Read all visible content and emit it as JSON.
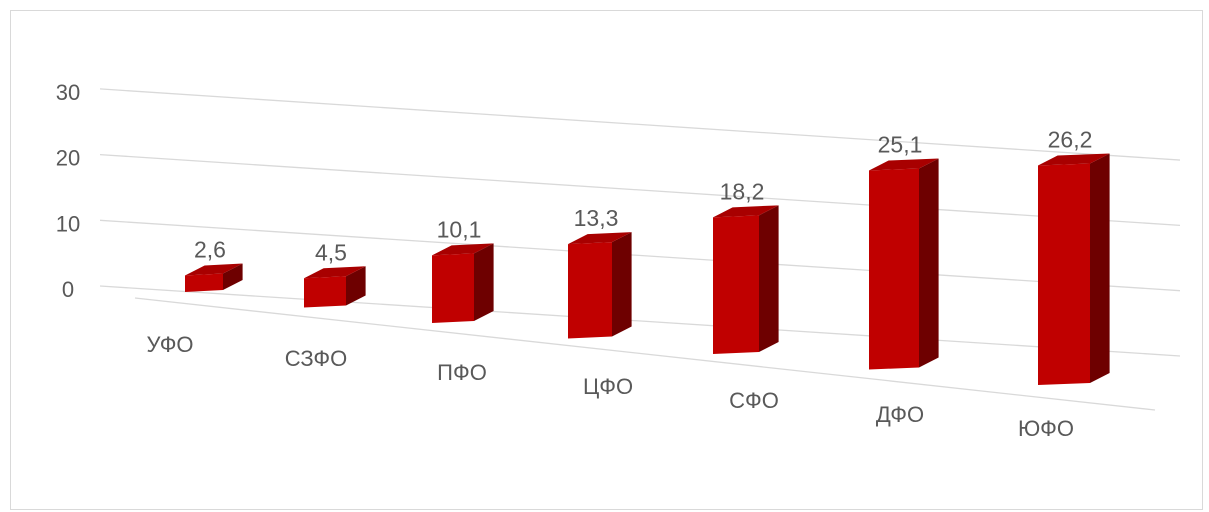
{
  "chart_data": {
    "type": "bar",
    "title": "",
    "xlabel": "",
    "ylabel": "",
    "categories": [
      "УФО",
      "СЗФО",
      "ПФО",
      "ЦФО",
      "СФО",
      "ДФО",
      "ЮФО"
    ],
    "values": [
      2.6,
      4.5,
      10.1,
      13.3,
      18.2,
      25.1,
      26.2
    ],
    "data_labels": [
      "2,6",
      "4,5",
      "10,1",
      "13,3",
      "18,2",
      "25,1",
      "26,2"
    ],
    "ylim": [
      0,
      30
    ],
    "yticks": [
      0,
      10,
      20,
      30
    ],
    "ytick_labels": [
      "0",
      "10",
      "20",
      "30"
    ],
    "grid": true,
    "legend": "none",
    "style": "3d-perspective",
    "colors": {
      "bar_front": "#c00000",
      "bar_top": "#a80000",
      "bar_side": "#6e0000",
      "gridline": "#d9d9d9",
      "text": "#595959"
    }
  }
}
